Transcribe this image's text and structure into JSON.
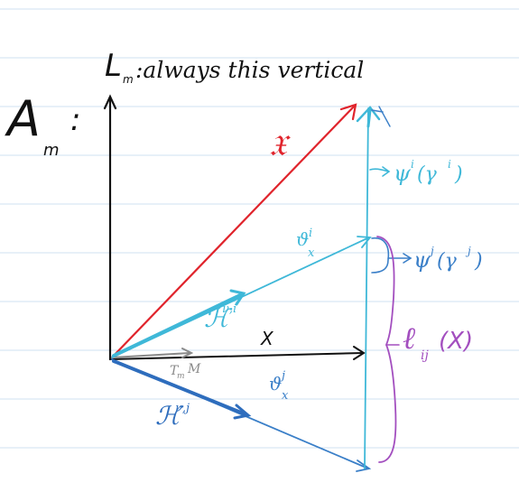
{
  "labels": {
    "bundle": "A",
    "bundle_sub": "m",
    "bundle_colon": ":",
    "vertical_name": "L",
    "vertical_sub": "m",
    "vertical_desc": ":always this vertical",
    "fiber_map": "𝔛",
    "upper_theta": "ϑ",
    "upper_theta_sup": "i",
    "upper_theta_sub": "x",
    "upper_h": "ℋ",
    "upper_h_sup": "ν,i",
    "x_label": "X",
    "tangent": "T",
    "tangent_sub": "m",
    "tangent_M": "M",
    "lower_h": "ℋ",
    "lower_h_sup": "ν,j",
    "lower_theta": "ϑ",
    "lower_theta_sup": "j",
    "lower_theta_sub": "x",
    "psi_upper": "ψ",
    "psi_upper_sup": "i",
    "psi_upper_arg": "(γ",
    "psi_upper_arg_sup": "i",
    "psi_upper_close": ")",
    "psi_lower": "ψ",
    "psi_lower_sup": "j",
    "psi_lower_arg": "(γ",
    "psi_lower_arg_sup": "j",
    "psi_lower_close": ")",
    "ell": "ℓ",
    "ell_sub": "ij",
    "ell_arg": "(X)"
  },
  "colors": {
    "background": "#ffffff",
    "ruling": "#cfe0f0",
    "black": "#111111",
    "red": "#e0242c",
    "cyan": "#3fb8d8",
    "blue": "#3a7fc8",
    "dark_blue": "#2e6dbd",
    "gray": "#8a8a8a",
    "purple": "#a34fbf"
  }
}
